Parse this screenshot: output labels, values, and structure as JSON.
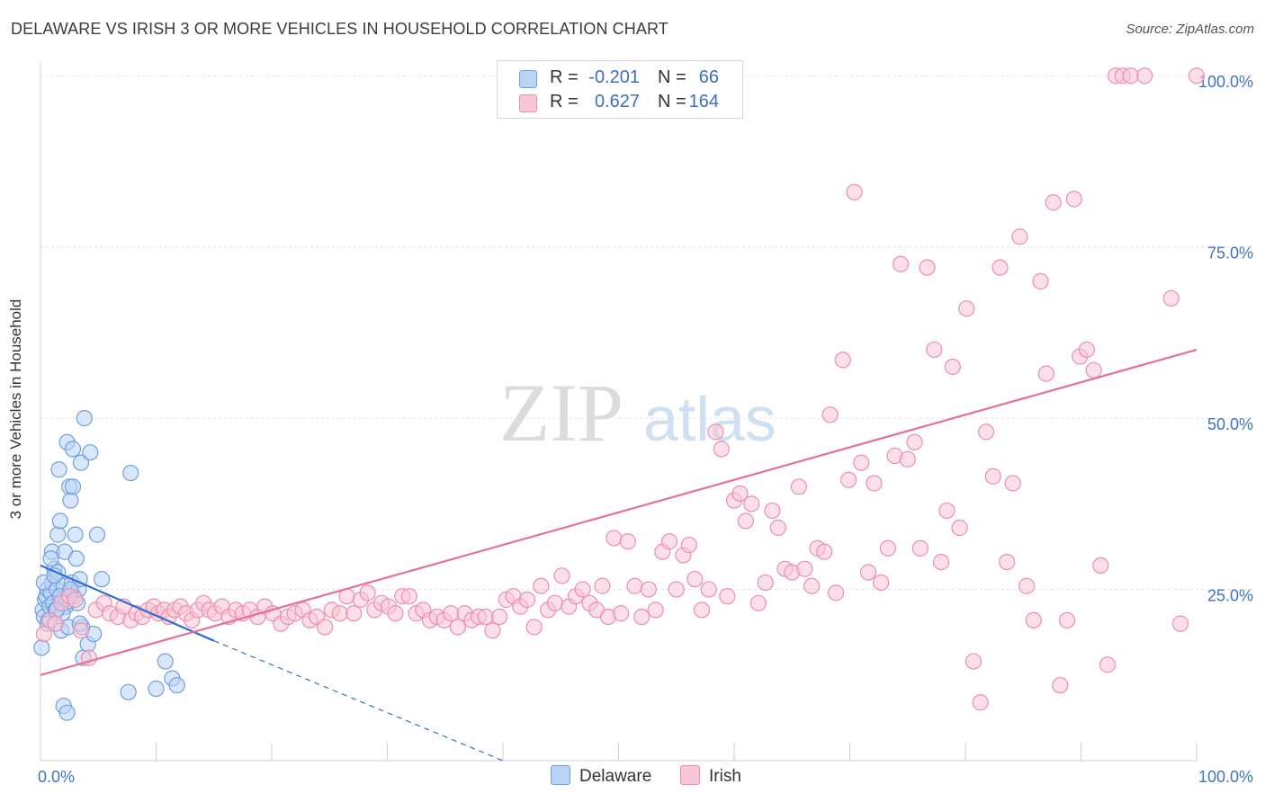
{
  "header": {
    "title": "DELAWARE VS IRISH 3 OR MORE VEHICLES IN HOUSEHOLD CORRELATION CHART",
    "source": "Source: ZipAtlas.com"
  },
  "watermark": {
    "zip": "ZIP",
    "atlas": "atlas"
  },
  "legend": {
    "r_label": "R =",
    "n_label": "N =",
    "rows": [
      {
        "name": "Delaware",
        "r": "-0.201",
        "n": "66"
      },
      {
        "name": "Irish",
        "r": "0.627",
        "n": "164"
      }
    ]
  },
  "colors": {
    "delaware_fill": "#b9d3f5",
    "delaware_stroke": "#6f9fe0",
    "delaware_line": "#2f6fd1",
    "irish_fill": "#f9c6d6",
    "irish_stroke": "#ec8fae",
    "irish_line": "#e5709a",
    "tick_label": "#3f73c6",
    "grid": "#e2e2e2"
  },
  "chart_data": {
    "type": "scatter",
    "title": "DELAWARE VS IRISH 3 OR MORE VEHICLES IN HOUSEHOLD CORRELATION CHART",
    "xlabel": "",
    "ylabel": "3 or more Vehicles in Household",
    "xlim": [
      0,
      100
    ],
    "ylim": [
      0,
      102
    ],
    "x_tick_labels": [
      "0.0%",
      "100.0%"
    ],
    "y_ticks": [
      25,
      50,
      75,
      100
    ],
    "y_tick_labels": [
      "25.0%",
      "50.0%",
      "75.0%",
      "100.0%"
    ],
    "grid": true,
    "legend_position": "top-center",
    "series": [
      {
        "name": "Delaware",
        "r": -0.201,
        "n": 66,
        "trend": {
          "x": [
            0,
            15
          ],
          "y": [
            28.5,
            17.5
          ],
          "dashed_extension_to": [
            40,
            0
          ]
        },
        "points": [
          [
            0.1,
            16.5
          ],
          [
            0.2,
            22
          ],
          [
            0.3,
            21
          ],
          [
            0.4,
            23.5
          ],
          [
            0.5,
            24
          ],
          [
            0.6,
            25
          ],
          [
            0.7,
            20.5
          ],
          [
            0.8,
            22.5
          ],
          [
            0.9,
            24.5
          ],
          [
            1.0,
            26
          ],
          [
            1.0,
            30.5
          ],
          [
            1.1,
            23
          ],
          [
            1.2,
            28
          ],
          [
            1.3,
            22
          ],
          [
            1.4,
            25
          ],
          [
            1.5,
            27.5
          ],
          [
            1.5,
            33
          ],
          [
            1.6,
            42.5
          ],
          [
            1.7,
            35
          ],
          [
            1.8,
            19
          ],
          [
            1.9,
            23.5
          ],
          [
            2.0,
            25.5
          ],
          [
            2.0,
            8
          ],
          [
            2.1,
            30.5
          ],
          [
            2.2,
            22.5
          ],
          [
            2.3,
            7
          ],
          [
            2.3,
            46.5
          ],
          [
            2.4,
            24
          ],
          [
            2.4,
            19.5
          ],
          [
            2.5,
            24.5
          ],
          [
            2.5,
            40
          ],
          [
            2.6,
            38
          ],
          [
            2.7,
            26
          ],
          [
            2.8,
            45.5
          ],
          [
            2.9,
            24
          ],
          [
            3.0,
            33
          ],
          [
            3.1,
            29.5
          ],
          [
            3.2,
            23
          ],
          [
            3.3,
            25
          ],
          [
            3.4,
            26.5
          ],
          [
            3.5,
            43.5
          ],
          [
            3.6,
            19.5
          ],
          [
            3.7,
            15
          ],
          [
            3.8,
            50
          ],
          [
            4.1,
            17
          ],
          [
            4.3,
            45
          ],
          [
            4.6,
            18.5
          ],
          [
            4.9,
            33
          ],
          [
            5.3,
            26.5
          ],
          [
            7.6,
            10
          ],
          [
            7.8,
            42
          ],
          [
            10.0,
            10.5
          ],
          [
            10.8,
            14.5
          ],
          [
            11.4,
            12
          ],
          [
            11.8,
            11
          ],
          [
            0.3,
            26
          ],
          [
            0.6,
            20
          ],
          [
            1.2,
            27
          ],
          [
            1.7,
            24
          ],
          [
            2.2,
            23
          ],
          [
            2.8,
            40
          ],
          [
            3.4,
            20
          ],
          [
            1.9,
            21.5
          ],
          [
            0.9,
            29.5
          ],
          [
            2.6,
            25
          ],
          [
            1.4,
            22
          ]
        ]
      },
      {
        "name": "Irish",
        "r": 0.627,
        "n": 164,
        "trend": {
          "x": [
            0,
            100
          ],
          "y": [
            12.5,
            60
          ]
        },
        "points": [
          [
            0.3,
            18.5
          ],
          [
            0.8,
            20.5
          ],
          [
            1.3,
            20
          ],
          [
            1.8,
            23
          ],
          [
            2.5,
            24
          ],
          [
            3.0,
            23.5
          ],
          [
            3.5,
            19
          ],
          [
            4.2,
            15
          ],
          [
            4.8,
            22
          ],
          [
            5.5,
            23
          ],
          [
            6.0,
            21.5
          ],
          [
            6.7,
            21
          ],
          [
            7.2,
            22.5
          ],
          [
            7.8,
            20.5
          ],
          [
            8.3,
            21.5
          ],
          [
            8.8,
            21
          ],
          [
            9.3,
            22
          ],
          [
            9.8,
            22.5
          ],
          [
            10.2,
            21.5
          ],
          [
            10.7,
            22
          ],
          [
            11.1,
            21
          ],
          [
            11.6,
            22
          ],
          [
            12.1,
            22.5
          ],
          [
            12.6,
            21.5
          ],
          [
            13.1,
            20.5
          ],
          [
            13.6,
            22
          ],
          [
            14.1,
            23
          ],
          [
            14.6,
            22
          ],
          [
            15.1,
            21.5
          ],
          [
            15.7,
            22.5
          ],
          [
            16.3,
            21
          ],
          [
            16.9,
            22
          ],
          [
            17.5,
            21.5
          ],
          [
            18.1,
            22
          ],
          [
            18.8,
            21
          ],
          [
            19.4,
            22.5
          ],
          [
            20.1,
            21.5
          ],
          [
            20.8,
            20
          ],
          [
            21.4,
            21
          ],
          [
            22.0,
            21.5
          ],
          [
            22.7,
            22
          ],
          [
            23.3,
            20.5
          ],
          [
            23.9,
            21
          ],
          [
            24.6,
            19.5
          ],
          [
            25.2,
            22
          ],
          [
            25.9,
            21.5
          ],
          [
            26.5,
            24
          ],
          [
            27.1,
            21.5
          ],
          [
            27.7,
            23.5
          ],
          [
            28.3,
            24.5
          ],
          [
            28.9,
            22
          ],
          [
            29.5,
            23
          ],
          [
            30.1,
            22.5
          ],
          [
            30.7,
            21.5
          ],
          [
            31.3,
            24
          ],
          [
            31.9,
            24
          ],
          [
            32.5,
            21.5
          ],
          [
            33.1,
            22
          ],
          [
            33.7,
            20.5
          ],
          [
            34.3,
            21
          ],
          [
            34.9,
            20.5
          ],
          [
            35.5,
            21.5
          ],
          [
            36.1,
            19.5
          ],
          [
            36.7,
            21.5
          ],
          [
            37.3,
            20.5
          ],
          [
            37.9,
            21
          ],
          [
            38.5,
            21
          ],
          [
            39.1,
            19
          ],
          [
            39.7,
            21
          ],
          [
            40.3,
            23.5
          ],
          [
            40.9,
            24
          ],
          [
            41.5,
            22.5
          ],
          [
            42.1,
            23.5
          ],
          [
            42.7,
            19.5
          ],
          [
            43.3,
            25.5
          ],
          [
            43.9,
            22
          ],
          [
            44.5,
            23
          ],
          [
            45.1,
            27
          ],
          [
            45.7,
            22.5
          ],
          [
            46.3,
            24
          ],
          [
            46.9,
            25
          ],
          [
            47.5,
            23
          ],
          [
            48.1,
            22
          ],
          [
            48.6,
            25.5
          ],
          [
            49.1,
            21
          ],
          [
            49.6,
            32.5
          ],
          [
            50.2,
            21.5
          ],
          [
            50.8,
            32
          ],
          [
            51.4,
            25.5
          ],
          [
            52.0,
            21
          ],
          [
            52.6,
            25
          ],
          [
            53.2,
            22
          ],
          [
            53.8,
            30.5
          ],
          [
            54.4,
            32
          ],
          [
            55.0,
            25
          ],
          [
            55.6,
            30
          ],
          [
            56.1,
            31.5
          ],
          [
            56.6,
            26.5
          ],
          [
            57.2,
            22
          ],
          [
            57.8,
            25
          ],
          [
            58.4,
            48
          ],
          [
            58.9,
            45.5
          ],
          [
            59.4,
            24
          ],
          [
            60.0,
            38
          ],
          [
            60.5,
            39
          ],
          [
            61.0,
            35
          ],
          [
            61.5,
            37.5
          ],
          [
            62.1,
            23
          ],
          [
            62.7,
            26
          ],
          [
            63.3,
            36.5
          ],
          [
            63.8,
            34
          ],
          [
            64.4,
            28
          ],
          [
            65.0,
            27.5
          ],
          [
            65.6,
            40
          ],
          [
            66.1,
            28
          ],
          [
            66.7,
            25.5
          ],
          [
            67.2,
            31
          ],
          [
            67.8,
            30.5
          ],
          [
            68.3,
            50.5
          ],
          [
            68.8,
            24.5
          ],
          [
            69.4,
            58.5
          ],
          [
            69.9,
            41
          ],
          [
            70.4,
            83
          ],
          [
            71.0,
            43.5
          ],
          [
            71.6,
            27.5
          ],
          [
            72.1,
            40.5
          ],
          [
            72.7,
            26
          ],
          [
            73.3,
            31
          ],
          [
            73.9,
            44.5
          ],
          [
            74.4,
            72.5
          ],
          [
            75.0,
            44
          ],
          [
            75.6,
            46.5
          ],
          [
            76.1,
            31
          ],
          [
            76.7,
            72
          ],
          [
            77.3,
            60
          ],
          [
            77.9,
            29
          ],
          [
            78.4,
            36.5
          ],
          [
            78.9,
            57.5
          ],
          [
            79.5,
            34
          ],
          [
            80.1,
            66
          ],
          [
            80.7,
            14.5
          ],
          [
            81.3,
            8.5
          ],
          [
            81.8,
            48
          ],
          [
            82.4,
            41.5
          ],
          [
            83.0,
            72
          ],
          [
            83.6,
            29
          ],
          [
            84.1,
            40.5
          ],
          [
            84.7,
            76.5
          ],
          [
            85.3,
            25.5
          ],
          [
            85.9,
            20.5
          ],
          [
            86.5,
            70
          ],
          [
            87.0,
            56.5
          ],
          [
            87.6,
            81.5
          ],
          [
            88.2,
            11
          ],
          [
            88.8,
            20.5
          ],
          [
            89.4,
            82
          ],
          [
            89.9,
            59
          ],
          [
            90.5,
            60
          ],
          [
            91.1,
            57
          ],
          [
            91.7,
            28.5
          ],
          [
            92.3,
            14
          ],
          [
            93.0,
            100
          ],
          [
            93.6,
            100
          ],
          [
            94.3,
            100
          ],
          [
            95.5,
            100
          ],
          [
            97.8,
            67.5
          ],
          [
            98.6,
            20
          ],
          [
            100.0,
            100
          ]
        ]
      }
    ]
  }
}
